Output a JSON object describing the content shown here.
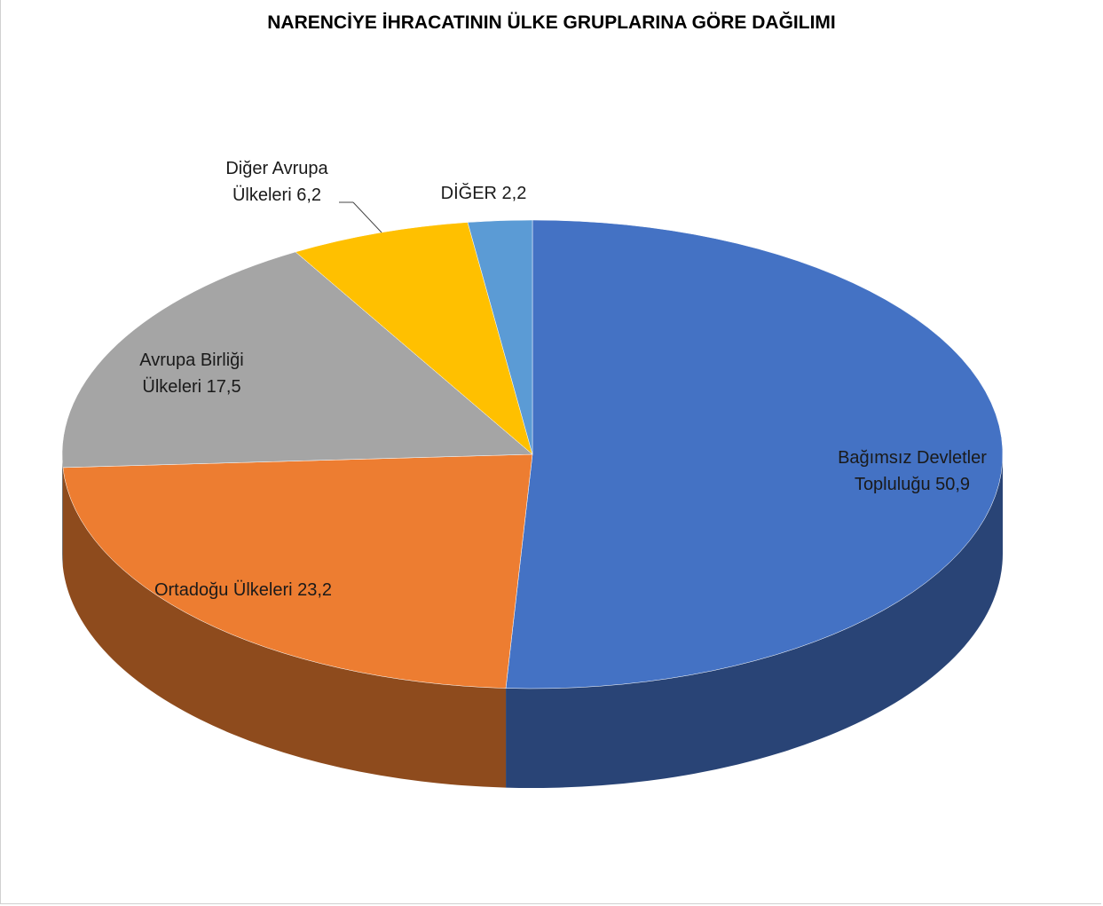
{
  "chart_data": {
    "type": "pie",
    "title": "NARENCİYE İHRACATININ ÜLKE GRUPLARINA GÖRE DAĞILIMI",
    "categories": [
      "Bağımsız Devletler Topluluğu",
      "Ortadoğu Ülkeleri",
      "Avrupa Birliği Ülkeleri",
      "Diğer Avrupa Ülkeleri",
      "DİĞER"
    ],
    "values": [
      50.9,
      23.2,
      17.5,
      6.2,
      2.2
    ],
    "value_labels": [
      "50,9",
      "23,2",
      "17,5",
      "6,2",
      "2,2"
    ],
    "colors": [
      "#4472c4",
      "#ed7d31",
      "#a5a5a5",
      "#ffc000",
      "#5b9bd5"
    ]
  }
}
